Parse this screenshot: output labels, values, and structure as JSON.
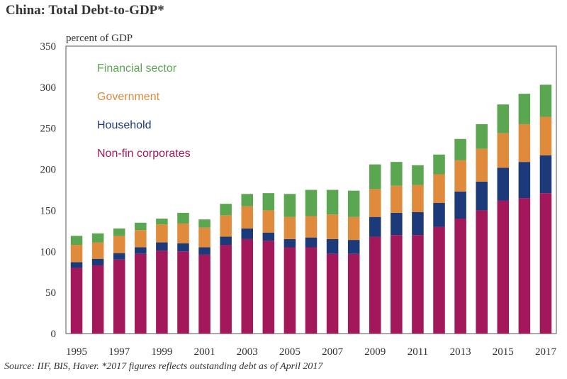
{
  "chart_data": {
    "type": "bar",
    "stacked": true,
    "title": "China: Total Debt-to-GDP*",
    "ylabel": "percent of GDP",
    "ylim": [
      0,
      350
    ],
    "yticks": [
      0,
      50,
      100,
      150,
      200,
      250,
      300,
      350
    ],
    "categories": [
      "1995",
      "1996",
      "1997",
      "1998",
      "1999",
      "2000",
      "2001",
      "2002",
      "2003",
      "2004",
      "2005",
      "2006",
      "2007",
      "2008",
      "2009",
      "2010",
      "2011",
      "2012",
      "2013",
      "2014",
      "2015",
      "2016",
      "2017"
    ],
    "xtick_labels": [
      "1995",
      "1997",
      "1999",
      "2001",
      "2003",
      "2005",
      "2007",
      "2009",
      "2011",
      "2013",
      "2015",
      "2017"
    ],
    "legend_position": "top-left",
    "grid": false,
    "series": [
      {
        "name": "Non-fin corporates",
        "color": "#a3185a",
        "values": [
          80,
          83,
          90,
          97,
          101,
          100,
          96,
          108,
          115,
          113,
          105,
          105,
          97,
          97,
          118,
          120,
          120,
          130,
          140,
          150,
          162,
          165,
          171
        ]
      },
      {
        "name": "Household",
        "color": "#1c3a7a",
        "values": [
          7,
          8,
          8,
          8,
          10,
          10,
          9,
          10,
          13,
          10,
          10,
          12,
          18,
          17,
          24,
          27,
          28,
          29,
          33,
          35,
          40,
          44,
          46
        ]
      },
      {
        "name": "Government",
        "color": "#e08a3c",
        "values": [
          21,
          20,
          21,
          21,
          22,
          24,
          24,
          26,
          27,
          27,
          27,
          26,
          30,
          28,
          34,
          33,
          33,
          35,
          38,
          40,
          42,
          46,
          47
        ]
      },
      {
        "name": "Financial sector",
        "color": "#5ba651",
        "values": [
          11,
          11,
          9,
          9,
          7,
          13,
          10,
          14,
          15,
          21,
          28,
          32,
          30,
          32,
          30,
          29,
          24,
          24,
          26,
          30,
          35,
          37,
          39
        ]
      }
    ],
    "source": "Source: IIF, BIS, Haver. *2017 figures reflects outstanding debt as of April 2017"
  }
}
